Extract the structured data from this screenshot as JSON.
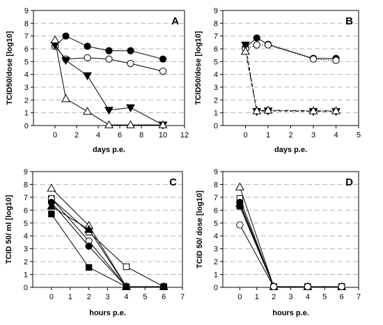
{
  "chart_data": [
    {
      "panel_label": "A",
      "type": "line",
      "xlabel": "days p.e.",
      "ylabel": "TCID50/dose [log10]",
      "xlim": [
        -2,
        12
      ],
      "ylim": [
        0,
        9
      ],
      "xticks": [
        0,
        2,
        4,
        6,
        8,
        10,
        12
      ],
      "yticks": [
        0,
        1,
        2,
        3,
        4,
        5,
        6,
        7,
        8,
        9
      ],
      "grid": "horizontal dashed",
      "series": [
        {
          "marker": "circle-filled",
          "line": "solid",
          "x": [
            0,
            1,
            3,
            5,
            7,
            10
          ],
          "y": [
            6.2,
            7.0,
            6.2,
            5.85,
            5.85,
            5.2
          ]
        },
        {
          "marker": "circle-open",
          "line": "solid",
          "x": [
            0,
            1,
            3,
            5,
            7,
            10
          ],
          "y": [
            6.2,
            5.2,
            5.3,
            5.2,
            4.85,
            4.25
          ]
        },
        {
          "marker": "triangle-down-filled",
          "line": "solid",
          "x": [
            0,
            1,
            3,
            5,
            7,
            10
          ],
          "y": [
            6.3,
            5.1,
            3.9,
            1.2,
            1.4,
            0.05
          ]
        },
        {
          "marker": "triangle-up-open",
          "line": "solid",
          "x": [
            0,
            1,
            3,
            5,
            7,
            10
          ],
          "y": [
            6.7,
            2.1,
            1.1,
            0.05,
            0.05,
            0.05
          ]
        }
      ]
    },
    {
      "panel_label": "B",
      "type": "line",
      "xlabel": "days p.e.",
      "ylabel": "TCID50/dose [log10]",
      "xlim": [
        -1,
        5
      ],
      "ylim": [
        0,
        9
      ],
      "xticks": [
        0,
        1,
        2,
        3,
        4,
        5
      ],
      "yticks": [
        0,
        1,
        2,
        3,
        4,
        5,
        6,
        7,
        8,
        9
      ],
      "grid": "horizontal dashed",
      "series": [
        {
          "marker": "circle-filled",
          "line": "solid",
          "x": [
            0,
            0.5,
            1,
            3,
            4
          ],
          "y": [
            6.1,
            6.85,
            6.35,
            5.25,
            5.25
          ]
        },
        {
          "marker": "circle-open",
          "line": "dotted",
          "x": [
            0,
            0.5,
            1,
            3,
            4
          ],
          "y": [
            6.0,
            6.3,
            6.3,
            5.2,
            5.1
          ]
        },
        {
          "marker": "triangle-down-filled",
          "line": "dashed",
          "x": [
            0,
            0.5,
            1,
            3,
            4
          ],
          "y": [
            6.3,
            1.1,
            1.15,
            1.1,
            1.1
          ]
        },
        {
          "marker": "triangle-up-open",
          "line": "dashdot",
          "x": [
            0,
            0.5,
            1,
            3,
            4
          ],
          "y": [
            5.8,
            1.15,
            1.2,
            1.15,
            1.15
          ]
        }
      ]
    },
    {
      "panel_label": "C",
      "type": "line",
      "xlabel": "hours p.e.",
      "ylabel": "TCID 50/ ml [log10]",
      "xlim": [
        -1,
        7
      ],
      "ylim": [
        0,
        9
      ],
      "xticks": [
        0,
        1,
        2,
        3,
        4,
        5,
        6,
        7
      ],
      "yticks": [
        0,
        1,
        2,
        3,
        4,
        5,
        6,
        7,
        8,
        9
      ],
      "grid": "horizontal dashed",
      "series": [
        {
          "marker": "triangle-up-open",
          "line": "solid",
          "x": [
            0,
            2,
            4,
            6
          ],
          "y": [
            7.7,
            4.8,
            0.05,
            0.05
          ]
        },
        {
          "marker": "square-open",
          "line": "solid",
          "x": [
            0,
            2,
            4,
            6
          ],
          "y": [
            6.9,
            4.3,
            1.6,
            0.05
          ]
        },
        {
          "marker": "circle-open",
          "line": "solid",
          "x": [
            0,
            2,
            4,
            6
          ],
          "y": [
            6.9,
            3.6,
            0.05,
            0.05
          ]
        },
        {
          "marker": "circle-filled",
          "line": "solid",
          "x": [
            0,
            2,
            4,
            6
          ],
          "y": [
            6.6,
            3.2,
            0.05,
            0.05
          ]
        },
        {
          "marker": "triangle-up-filled",
          "line": "solid",
          "x": [
            0,
            2,
            4,
            6
          ],
          "y": [
            6.3,
            4.5,
            0.05,
            0.05
          ]
        },
        {
          "marker": "square-filled",
          "line": "solid",
          "x": [
            0,
            2,
            4,
            6
          ],
          "y": [
            5.7,
            1.55,
            0.05,
            0.05
          ]
        }
      ]
    },
    {
      "panel_label": "D",
      "type": "line",
      "xlabel": "hours p.e.",
      "ylabel": "TCID 50/ dose [log10]",
      "xlim": [
        -1,
        7
      ],
      "ylim": [
        0,
        9
      ],
      "xticks": [
        0,
        1,
        2,
        3,
        4,
        5,
        6,
        7
      ],
      "yticks": [
        0,
        1,
        2,
        3,
        4,
        5,
        6,
        7,
        8,
        9
      ],
      "grid": "horizontal dashed",
      "series": [
        {
          "marker": "triangle-up-open",
          "line": "solid",
          "x": [
            0,
            2,
            4,
            6
          ],
          "y": [
            7.8,
            0.05,
            0.05,
            0.05
          ]
        },
        {
          "marker": "square-open",
          "line": "solid",
          "x": [
            0,
            2,
            4,
            6
          ],
          "y": [
            6.9,
            0.05,
            0.05,
            0.05
          ]
        },
        {
          "marker": "circle-filled",
          "line": "solid",
          "x": [
            0,
            2,
            4,
            6
          ],
          "y": [
            6.6,
            0.05,
            0.05,
            0.05
          ]
        },
        {
          "marker": "triangle-up-filled",
          "line": "solid",
          "x": [
            0,
            2,
            4,
            6
          ],
          "y": [
            6.5,
            0.05,
            0.05,
            0.05
          ]
        },
        {
          "marker": "square-filled",
          "line": "solid",
          "x": [
            0,
            2,
            4,
            6
          ],
          "y": [
            6.3,
            0.05,
            0.05,
            0.05
          ]
        },
        {
          "marker": "circle-open",
          "line": "solid",
          "x": [
            0,
            2,
            4,
            6
          ],
          "y": [
            4.85,
            0.05,
            0.05,
            0.05
          ]
        }
      ]
    }
  ]
}
